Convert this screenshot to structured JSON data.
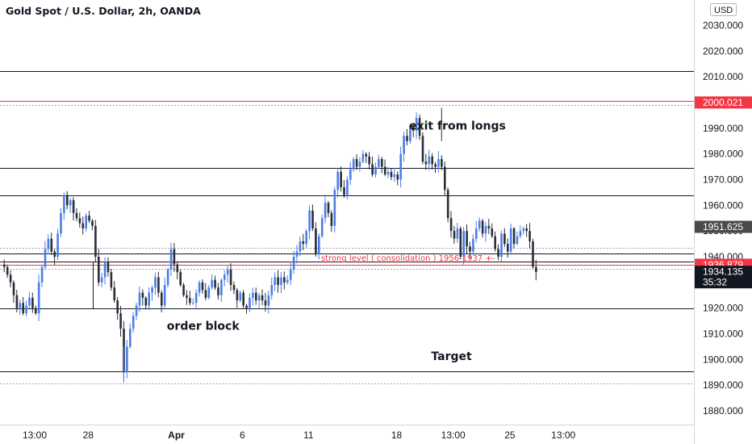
{
  "header": {
    "symbol_title": "Gold Spot / U.S. Dollar, 2h, OANDA"
  },
  "price_axis": {
    "currency": "USD",
    "ticks": [
      "2030.000",
      "2020.000",
      "2010.000",
      "2000.000",
      "1990.000",
      "1980.000",
      "1970.000",
      "1960.000",
      "1950.000",
      "1940.000",
      "1930.000",
      "1920.000",
      "1910.000",
      "1900.000",
      "1890.000",
      "1880.000"
    ]
  },
  "time_axis": {
    "ticks": [
      {
        "label": "13:00",
        "bar": 10
      },
      {
        "label": "28",
        "bar": 27
      },
      {
        "label": "Apr",
        "bar": 55,
        "bold": true
      },
      {
        "label": "6",
        "bar": 76
      },
      {
        "label": "11",
        "bar": 97
      },
      {
        "label": "18",
        "bar": 125
      },
      {
        "label": "13:00",
        "bar": 143
      },
      {
        "label": "25",
        "bar": 161
      },
      {
        "label": "13:00",
        "bar": 178
      }
    ]
  },
  "price_badges": [
    {
      "label": "2000.021",
      "price": 2000.021,
      "color": "#f23645",
      "text_color": "#ffffff"
    },
    {
      "label": "1951.625",
      "price": 1951.625,
      "color": "#4a4a4a",
      "text_color": "#ffffff"
    },
    {
      "label": "1936.879",
      "price": 1936.879,
      "color": "#f23645",
      "text_color": "#ffffff"
    },
    {
      "label": "1934.135",
      "price": 1934.135,
      "color": "#131722",
      "text_color": "#ffffff",
      "sub": "35:32"
    }
  ],
  "annotations": [
    {
      "text": "exit from longs",
      "bar": 129,
      "price": 1989.5
    },
    {
      "text": "order block",
      "bar": 52,
      "price": 1911.5
    },
    {
      "text": "Target",
      "bar": 136,
      "price": 1899.8
    },
    {
      "text": "strong level ( consolidation ) 1956-1937 +-",
      "bar": 101,
      "price": 1938.5,
      "color": "#f23645",
      "small": true
    }
  ],
  "chart_data": {
    "type": "candlestick",
    "title": "Gold Spot / U.S. Dollar, 2h, OANDA",
    "ylim": [
      1875,
      2035
    ],
    "up_color": "#4c7de6",
    "down_color": "#2a2e39",
    "horizontal_levels": [
      {
        "price": 2012.3,
        "color": "#131722"
      },
      {
        "price": 2000.5,
        "color": "#f23645"
      },
      {
        "price": 1999.2,
        "color": "#a0a4ad",
        "dashed": true
      },
      {
        "price": 1974.5,
        "color": "#131722"
      },
      {
        "price": 1964.0,
        "color": "#131722"
      },
      {
        "price": 1943.5,
        "color": "#a0a4ad",
        "dashed": true
      },
      {
        "price": 1941.2,
        "color": "#131722"
      },
      {
        "price": 1938.0,
        "color": "#131722"
      },
      {
        "price": 1936.9,
        "color": "#f23645"
      },
      {
        "price": 1935.4,
        "color": "#a0a4ad",
        "dashed": true
      },
      {
        "price": 1919.8,
        "color": "#131722"
      },
      {
        "price": 1895.3,
        "color": "#131722"
      },
      {
        "price": 1890.8,
        "color": "#a0a4ad",
        "dashed": true
      }
    ],
    "order_block_box": {
      "start_bar": 28,
      "top": 1938,
      "bottom": 1919.8
    },
    "closes": [
      1936,
      1933,
      1930,
      1925,
      1920,
      1922,
      1918,
      1921,
      1924,
      1920,
      1918,
      1930,
      1936,
      1943,
      1947,
      1942,
      1940,
      1949,
      1957,
      1964,
      1960,
      1962,
      1957,
      1955,
      1953,
      1951,
      1956,
      1954,
      1952,
      1940,
      1930,
      1932,
      1938,
      1934,
      1928,
      1923,
      1918,
      1912,
      1895,
      1905,
      1912,
      1917,
      1921,
      1926,
      1924,
      1921,
      1926,
      1928,
      1932,
      1926,
      1921,
      1929,
      1935,
      1943,
      1937,
      1934,
      1929,
      1925,
      1924,
      1922,
      1922,
      1926,
      1930,
      1927,
      1924,
      1928,
      1931,
      1928,
      1925,
      1931,
      1933,
      1935,
      1929,
      1927,
      1923,
      1926,
      1921,
      1920,
      1924,
      1926,
      1923,
      1925,
      1923,
      1921,
      1925,
      1929,
      1932,
      1929,
      1932,
      1930,
      1931,
      1935,
      1940,
      1942,
      1946,
      1945,
      1950,
      1958,
      1951,
      1941,
      1948,
      1955,
      1961,
      1957,
      1952,
      1966,
      1973,
      1967,
      1964,
      1970,
      1974,
      1978,
      1975,
      1977,
      1980,
      1979,
      1976,
      1972,
      1975,
      1978,
      1975,
      1972,
      1973,
      1971,
      1972,
      1970,
      1980,
      1987,
      1985,
      1991,
      1989,
      1994,
      1987,
      1977,
      1976,
      1979,
      1976,
      1975,
      1978,
      1975,
      1966,
      1955,
      1950,
      1947,
      1951,
      1940,
      1950,
      1944,
      1942,
      1947,
      1951,
      1954,
      1949,
      1952,
      1951,
      1948,
      1943,
      1940,
      1949,
      1945,
      1942,
      1951,
      1945,
      1948,
      1950,
      1951,
      1950,
      1946,
      1936,
      1934
    ]
  }
}
